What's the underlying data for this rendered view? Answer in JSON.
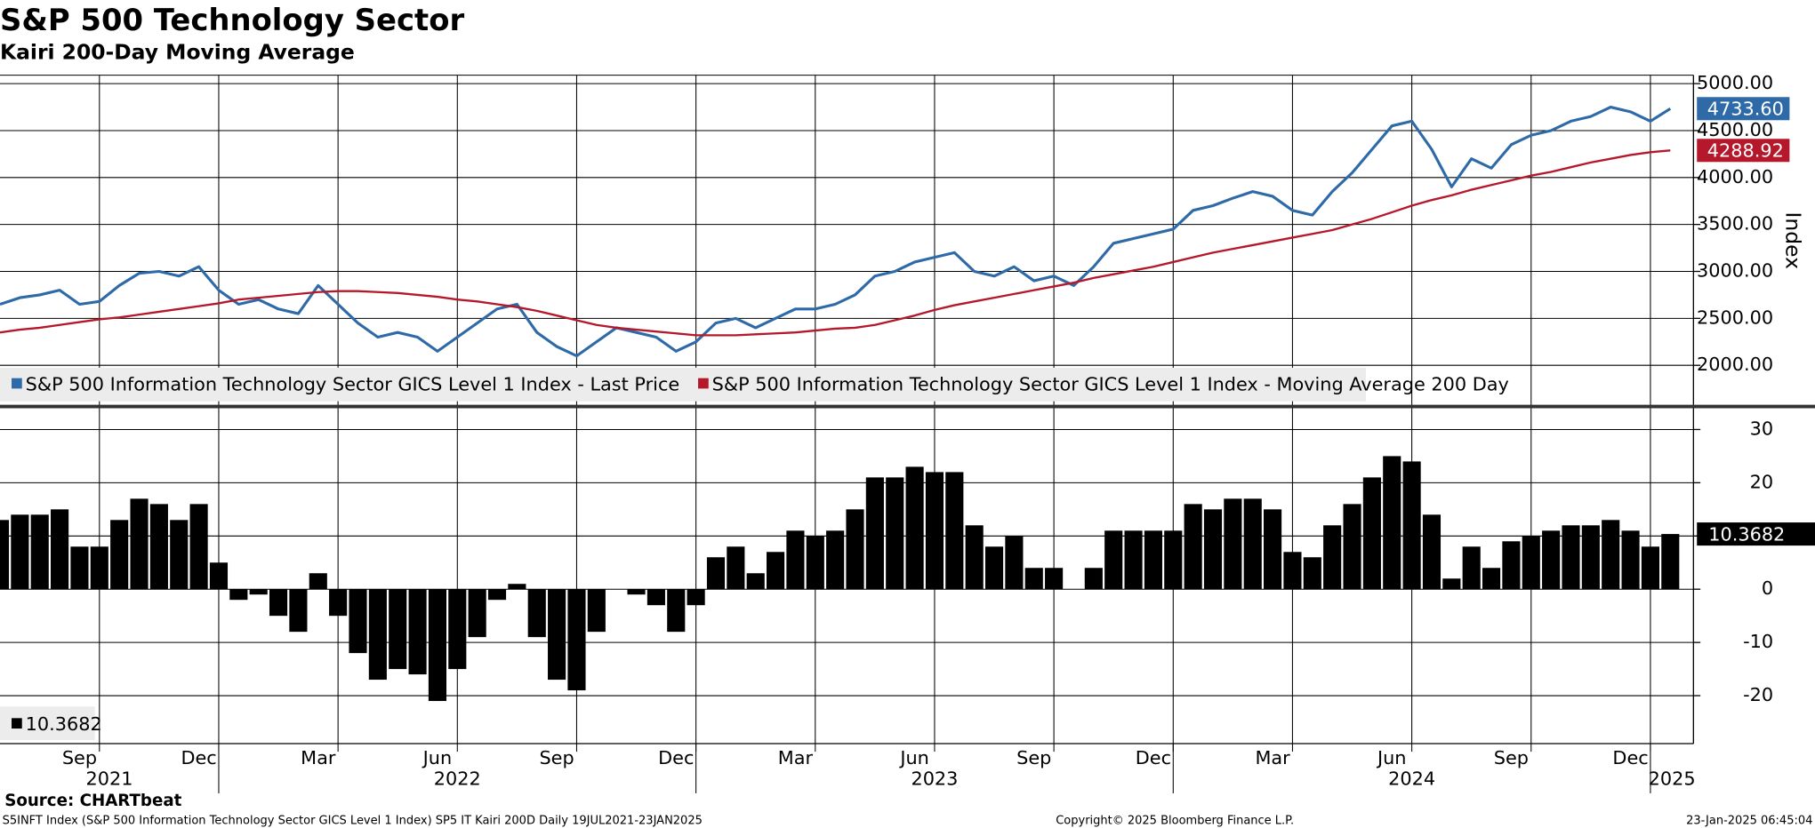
{
  "chart_data": [
    {
      "type": "line",
      "title": "S&P 500 Technology Sector",
      "subtitle": "Kairi 200-Day Moving Average",
      "ylabel": "Index",
      "series": [
        {
          "name": "S&P 500 Information Technology Sector GICS Level 1 Index - Last Price",
          "color": "#2e6aa8",
          "last_label": "4733.60",
          "values": [
            2650,
            2720,
            2750,
            2800,
            2650,
            2680,
            2850,
            2980,
            3000,
            2950,
            3050,
            2800,
            2650,
            2700,
            2600,
            2550,
            2850,
            2650,
            2450,
            2300,
            2350,
            2300,
            2150,
            2300,
            2450,
            2600,
            2650,
            2350,
            2200,
            2100,
            2250,
            2400,
            2350,
            2300,
            2150,
            2250,
            2450,
            2500,
            2400,
            2500,
            2600,
            2600,
            2650,
            2750,
            2950,
            3000,
            3100,
            3150,
            3200,
            3000,
            2950,
            3050,
            2900,
            2950,
            2850,
            3050,
            3300,
            3350,
            3400,
            3450,
            3650,
            3700,
            3780,
            3850,
            3800,
            3650,
            3600,
            3850,
            4050,
            4300,
            4550,
            4600,
            4300,
            3900,
            4200,
            4100,
            4350,
            4450,
            4500,
            4600,
            4650,
            4750,
            4700,
            4600,
            4733.6
          ]
        },
        {
          "name": "S&P 500 Information Technology Sector GICS Level 1 Index - Moving Average 200 Day",
          "color": "#b5182b",
          "last_label": "4288.92",
          "values": [
            2350,
            2380,
            2400,
            2430,
            2460,
            2490,
            2510,
            2540,
            2570,
            2600,
            2630,
            2660,
            2700,
            2720,
            2740,
            2760,
            2780,
            2790,
            2790,
            2780,
            2770,
            2750,
            2730,
            2700,
            2680,
            2650,
            2620,
            2580,
            2530,
            2480,
            2430,
            2400,
            2380,
            2360,
            2340,
            2320,
            2320,
            2320,
            2330,
            2340,
            2350,
            2370,
            2390,
            2400,
            2430,
            2480,
            2530,
            2590,
            2640,
            2680,
            2720,
            2760,
            2800,
            2840,
            2880,
            2930,
            2970,
            3010,
            3050,
            3100,
            3150,
            3200,
            3240,
            3280,
            3320,
            3360,
            3400,
            3440,
            3500,
            3560,
            3630,
            3700,
            3760,
            3810,
            3870,
            3920,
            3970,
            4020,
            4060,
            4110,
            4160,
            4200,
            4240,
            4270,
            4288.92
          ]
        }
      ],
      "ylim": [
        1580,
        5090
      ],
      "yticks": [
        {
          "value": 2000,
          "label": "2000.00"
        },
        {
          "value": 2500,
          "label": "2500.00"
        },
        {
          "value": 3000,
          "label": "3000.00"
        },
        {
          "value": 3500,
          "label": "3500.00"
        },
        {
          "value": 4000,
          "label": "4000.00"
        },
        {
          "value": 4500,
          "label": "4500.00"
        },
        {
          "value": 5000,
          "label": "5000.00"
        }
      ],
      "grid": true
    },
    {
      "type": "bar",
      "categories": [
        null,
        null,
        null,
        "Sep",
        null,
        null,
        null,
        null,
        null,
        "Dec",
        null,
        null,
        null,
        null,
        null,
        "Mar",
        null,
        null,
        null,
        null,
        null,
        "Jun",
        null,
        null,
        null,
        null,
        null,
        "Sep",
        null,
        null,
        null,
        null,
        null,
        "Dec",
        null,
        null,
        null,
        null,
        null,
        "Mar",
        null,
        null,
        null,
        null,
        null,
        "Jun",
        null,
        null,
        null,
        null,
        null,
        "Sep",
        null,
        null,
        null,
        null,
        null,
        "Dec",
        null,
        null,
        null,
        null,
        null,
        "Mar",
        null,
        null,
        null,
        null,
        null,
        "Jun",
        null,
        null,
        null,
        null,
        null,
        "Sep",
        null,
        null,
        null,
        null,
        null,
        "Dec",
        null,
        null,
        null
      ],
      "year_categories": [
        "2021",
        null,
        null,
        null,
        null,
        null,
        null,
        null,
        null,
        null,
        null,
        "2022",
        null,
        null,
        null,
        null,
        null,
        null,
        null,
        null,
        null,
        null,
        null,
        null,
        null,
        null,
        null,
        null,
        null,
        null,
        null,
        null,
        null,
        null,
        null,
        "2023",
        null,
        null,
        null,
        null,
        null,
        null,
        null,
        null,
        null,
        null,
        null,
        null,
        null,
        null,
        null,
        null,
        null,
        null,
        null,
        null,
        null,
        null,
        null,
        "2024",
        null,
        null,
        null,
        null,
        null,
        null,
        null,
        null,
        null,
        null,
        null,
        null,
        null,
        null,
        null,
        null,
        null,
        null,
        null,
        null,
        null,
        null,
        null,
        "2025",
        null
      ],
      "series": [
        {
          "color": "#000000",
          "values": [
            13,
            14,
            14,
            15,
            8,
            8,
            13,
            17,
            16,
            13,
            16,
            5,
            -2,
            -1,
            -5,
            -8,
            3,
            -5,
            -12,
            -17,
            -15,
            -16,
            -21,
            -15,
            -9,
            -2,
            1,
            -9,
            -17,
            -19,
            -8,
            0,
            -1,
            -3,
            -8,
            -3,
            6,
            8,
            3,
            7,
            11,
            10,
            11,
            15,
            21,
            21,
            23,
            22,
            22,
            12,
            8,
            10,
            4,
            4,
            0,
            4,
            11,
            11,
            11,
            11,
            16,
            15,
            17,
            17,
            15,
            7,
            6,
            12,
            16,
            21,
            25,
            24,
            14,
            2,
            8,
            4,
            9,
            10,
            11,
            12,
            12,
            13,
            11,
            8,
            10.3682
          ]
        }
      ],
      "ylim": [
        -29,
        34
      ],
      "yticks": [
        -20,
        -10,
        0,
        10,
        20,
        30
      ],
      "grid": true
    }
  ],
  "source": "Source: CHARTbeat",
  "footer": {
    "left": "S5INFT Index (S&P 500 Information Technology Sector GICS Level 1 Index) SP5 IT Kairi 200D  Daily 19JUL2021-23JAN2025",
    "center": "Copyright© 2025 Bloomberg Finance L.P.",
    "right": "23-Jan-2025 06:45:04"
  }
}
